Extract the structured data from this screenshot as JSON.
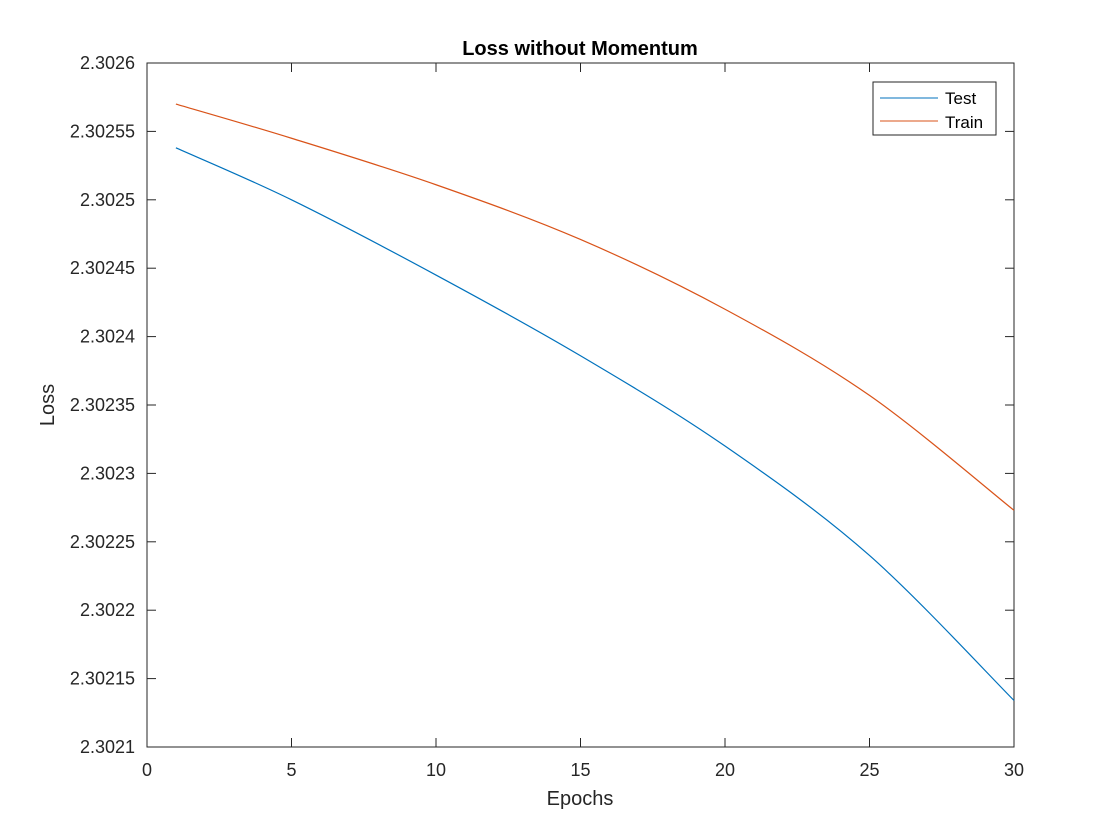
{
  "chart_data": {
    "type": "line",
    "title": "Loss without Momentum",
    "xlabel": "Epochs",
    "ylabel": "Loss",
    "xlim": [
      0,
      30
    ],
    "ylim": [
      2.3021,
      2.3026
    ],
    "xticks": [
      0,
      5,
      10,
      15,
      20,
      25,
      30
    ],
    "yticks": [
      2.3021,
      2.30215,
      2.3022,
      2.30225,
      2.3023,
      2.30235,
      2.3024,
      2.30245,
      2.3025,
      2.30255,
      2.3026
    ],
    "xtick_labels": [
      "0",
      "5",
      "10",
      "15",
      "20",
      "25",
      "30"
    ],
    "ytick_labels": [
      "2.3021",
      "2.30215",
      "2.3022",
      "2.30225",
      "2.3023",
      "2.30235",
      "2.3024",
      "2.30245",
      "2.3025",
      "2.30255",
      "2.3026"
    ],
    "grid": false,
    "legend_position": "top-right",
    "x": [
      1,
      5,
      10,
      15,
      20,
      25,
      30
    ],
    "series": [
      {
        "name": "Test",
        "color": "#0072BD",
        "values": [
          2.302538,
          2.3025,
          2.302445,
          2.302386,
          2.30232,
          2.30224,
          2.302134
        ]
      },
      {
        "name": "Train",
        "color": "#D95319",
        "values": [
          2.30257,
          2.302545,
          2.302511,
          2.302471,
          2.30242,
          2.302357,
          2.302273
        ]
      }
    ]
  }
}
